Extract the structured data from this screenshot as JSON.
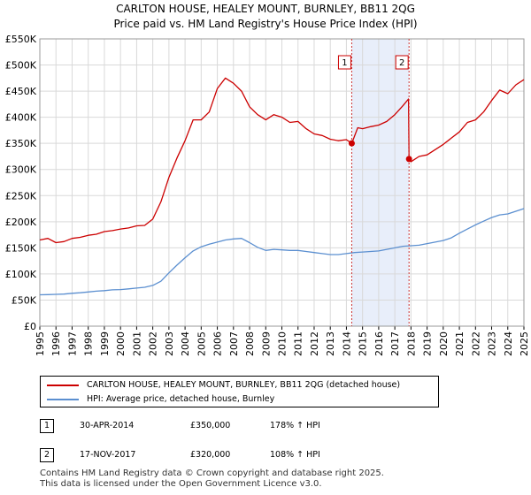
{
  "chart_data": {
    "type": "line",
    "title": "CARLTON HOUSE, HEALEY MOUNT, BURNLEY, BB11 2QG",
    "subtitle": "Price paid vs. HM Land Registry's House Price Index (HPI)",
    "xlabel": "",
    "ylabel": "",
    "xlim": [
      1995,
      2025
    ],
    "ylim": [
      0,
      550000
    ],
    "x_ticks": [
      "1995",
      "1996",
      "1997",
      "1998",
      "1999",
      "2000",
      "2001",
      "2002",
      "2003",
      "2004",
      "2005",
      "2006",
      "2007",
      "2008",
      "2009",
      "2010",
      "2011",
      "2012",
      "2013",
      "2014",
      "2015",
      "2016",
      "2017",
      "2018",
      "2019",
      "2020",
      "2021",
      "2022",
      "2023",
      "2024",
      "2025"
    ],
    "y_ticks": [
      {
        "value": 0,
        "label": "£0"
      },
      {
        "value": 50000,
        "label": "£50K"
      },
      {
        "value": 100000,
        "label": "£100K"
      },
      {
        "value": 150000,
        "label": "£150K"
      },
      {
        "value": 200000,
        "label": "£200K"
      },
      {
        "value": 250000,
        "label": "£250K"
      },
      {
        "value": 300000,
        "label": "£300K"
      },
      {
        "value": 350000,
        "label": "£350K"
      },
      {
        "value": 400000,
        "label": "£400K"
      },
      {
        "value": 450000,
        "label": "£450K"
      },
      {
        "value": 500000,
        "label": "£500K"
      },
      {
        "value": 550000,
        "label": "£550K"
      }
    ],
    "grid": true,
    "series": [
      {
        "name": "CARLTON HOUSE, HEALEY MOUNT, BURNLEY, BB11 2QG (detached house)",
        "color": "#cc0000",
        "x": [
          1995.0,
          1995.5,
          1996.0,
          1996.5,
          1997.0,
          1997.5,
          1998.0,
          1998.5,
          1999.0,
          1999.5,
          2000.0,
          2000.5,
          2001.0,
          2001.5,
          2002.0,
          2002.5,
          2003.0,
          2003.5,
          2004.0,
          2004.5,
          2005.0,
          2005.5,
          2006.0,
          2006.5,
          2007.0,
          2007.5,
          2008.0,
          2008.5,
          2009.0,
          2009.5,
          2010.0,
          2010.5,
          2011.0,
          2011.5,
          2012.0,
          2012.5,
          2013.0,
          2013.5,
          2014.0,
          2014.33,
          2014.7,
          2015.0,
          2015.5,
          2016.0,
          2016.5,
          2017.0,
          2017.5,
          2017.85,
          2017.88,
          2018.0,
          2018.5,
          2019.0,
          2019.5,
          2020.0,
          2020.5,
          2021.0,
          2021.5,
          2022.0,
          2022.5,
          2023.0,
          2023.5,
          2024.0,
          2024.5,
          2025.0
        ],
        "y": [
          165000,
          168000,
          160000,
          162000,
          168000,
          170000,
          174000,
          176000,
          181000,
          183000,
          186000,
          188000,
          192000,
          193000,
          205000,
          238000,
          285000,
          322000,
          355000,
          395000,
          395000,
          410000,
          455000,
          475000,
          465000,
          450000,
          420000,
          405000,
          395000,
          405000,
          400000,
          390000,
          392000,
          378000,
          368000,
          365000,
          358000,
          355000,
          357000,
          350000,
          380000,
          378000,
          382000,
          385000,
          392000,
          405000,
          422000,
          435000,
          320000,
          315000,
          325000,
          328000,
          338000,
          348000,
          360000,
          372000,
          390000,
          395000,
          410000,
          432000,
          452000,
          445000,
          462000,
          472000
        ]
      },
      {
        "name": "HPI: Average price, detached house, Burnley",
        "color": "#5b8fd0",
        "x": [
          1995.0,
          1995.5,
          1996.0,
          1996.5,
          1997.0,
          1997.5,
          1998.0,
          1998.5,
          1999.0,
          1999.5,
          2000.0,
          2000.5,
          2001.0,
          2001.5,
          2002.0,
          2002.5,
          2003.0,
          2003.5,
          2004.0,
          2004.5,
          2005.0,
          2005.5,
          2006.0,
          2006.5,
          2007.0,
          2007.5,
          2008.0,
          2008.5,
          2009.0,
          2009.5,
          2010.0,
          2010.5,
          2011.0,
          2011.5,
          2012.0,
          2012.5,
          2013.0,
          2013.5,
          2014.0,
          2014.5,
          2015.0,
          2015.5,
          2016.0,
          2016.5,
          2017.0,
          2017.5,
          2018.0,
          2018.5,
          2019.0,
          2019.5,
          2020.0,
          2020.5,
          2021.0,
          2021.5,
          2022.0,
          2022.5,
          2023.0,
          2023.5,
          2024.0,
          2024.5,
          2025.0
        ],
        "y": [
          60000,
          60500,
          61000,
          61500,
          63000,
          64000,
          65500,
          67000,
          68000,
          69500,
          70000,
          71500,
          73000,
          74500,
          78000,
          86000,
          102000,
          117000,
          131000,
          144000,
          152000,
          157000,
          161000,
          165000,
          167000,
          168000,
          160000,
          151000,
          145000,
          147000,
          146000,
          145000,
          145000,
          143000,
          141000,
          139000,
          137000,
          137000,
          139000,
          141000,
          142000,
          143000,
          144000,
          147000,
          150000,
          153000,
          154000,
          155000,
          158000,
          161000,
          164000,
          169000,
          178000,
          186000,
          194000,
          201000,
          208000,
          213000,
          215000,
          220000,
          225000
        ]
      }
    ],
    "annotations": [
      {
        "label": "1",
        "x": 2014.33,
        "y": 350000
      },
      {
        "label": "2",
        "x": 2017.88,
        "y": 320000
      }
    ],
    "shaded_region": [
      2014.33,
      2017.88
    ]
  },
  "legend": {
    "entries": [
      {
        "label": "CARLTON HOUSE, HEALEY MOUNT, BURNLEY, BB11 2QG (detached house)",
        "color": "#cc0000"
      },
      {
        "label": "HPI: Average price, detached house, Burnley",
        "color": "#5b8fd0"
      }
    ]
  },
  "transactions": [
    {
      "num": "1",
      "date": "30-APR-2014",
      "price": "£350,000",
      "hpi": "178% ↑ HPI"
    },
    {
      "num": "2",
      "date": "17-NOV-2017",
      "price": "£320,000",
      "hpi": "108% ↑ HPI"
    }
  ],
  "footer": {
    "line1": "Contains HM Land Registry data © Crown copyright and database right 2025.",
    "line2": "This data is licensed under the Open Government Licence v3.0."
  }
}
